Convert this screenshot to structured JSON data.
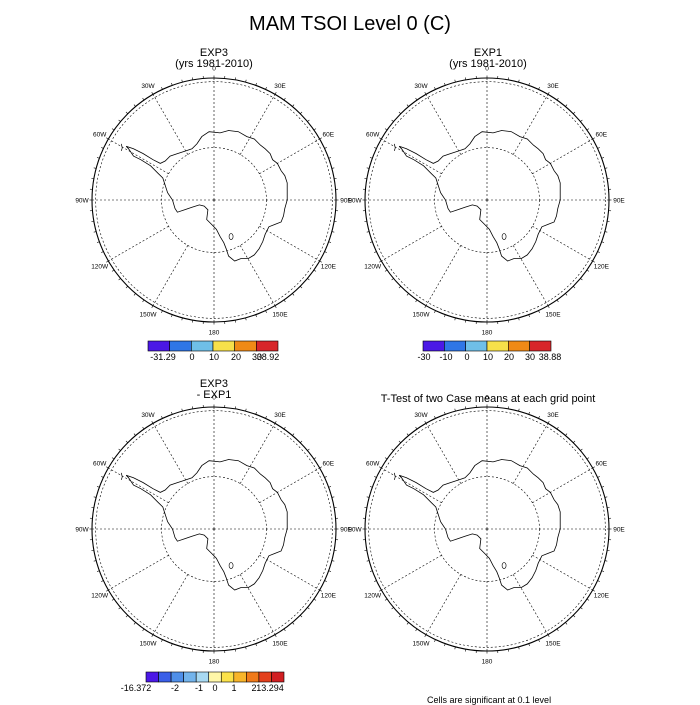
{
  "title": "MAM TSOI Level 0 (C)",
  "panels": [
    {
      "id": "exp3",
      "title": "EXP3",
      "subtitle": "(yrs 1981-2010)"
    },
    {
      "id": "exp1",
      "title": "EXP1",
      "subtitle": "(yrs 1981-2010)"
    },
    {
      "id": "diff",
      "title": "EXP3",
      "subtitle": "- EXP1"
    },
    {
      "id": "ttest",
      "title": "T-Test of two Case means at each grid point",
      "subtitle": ""
    }
  ],
  "lon_labels": [
    "0",
    "30E",
    "60E",
    "90E",
    "120E",
    "150E",
    "180",
    "150W",
    "120W",
    "90W",
    "60W",
    "30W"
  ],
  "colorbars": [
    {
      "id": "exp3",
      "colors": [
        "#4b18e6",
        "#2f76e6",
        "#6fbfe8",
        "#f7e04a",
        "#f08a16",
        "#d7262a"
      ],
      "labels": [
        "-31.29",
        "0",
        "10",
        "20",
        "30",
        "38.92"
      ]
    },
    {
      "id": "exp1",
      "colors": [
        "#4b18e6",
        "#2f76e6",
        "#6fbfe8",
        "#f7e04a",
        "#f08a16",
        "#d7262a"
      ],
      "labels": [
        "-30",
        "-10",
        "0",
        "10",
        "20",
        "30",
        "38.88"
      ]
    },
    {
      "id": "diff",
      "colors": [
        "#4b18e6",
        "#3a5fe8",
        "#4f8fe9",
        "#73b4ec",
        "#a8d9f2",
        "#fff7a8",
        "#fbe24a",
        "#f8b52a",
        "#f07a1a",
        "#e3401c",
        "#d11f22"
      ],
      "labels": [
        "-16.372",
        "-2",
        "-1",
        "0",
        "1",
        "2",
        "13.294"
      ]
    }
  ],
  "footnote": "Cells are significant at 0.1 level"
}
